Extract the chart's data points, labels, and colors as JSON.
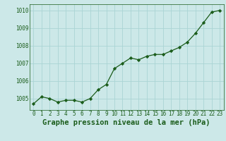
{
  "x": [
    0,
    1,
    2,
    3,
    4,
    5,
    6,
    7,
    8,
    9,
    10,
    11,
    12,
    13,
    14,
    15,
    16,
    17,
    18,
    19,
    20,
    21,
    22,
    23
  ],
  "y": [
    1004.7,
    1005.1,
    1005.0,
    1004.8,
    1004.9,
    1004.9,
    1004.8,
    1005.0,
    1005.5,
    1005.8,
    1006.7,
    1007.0,
    1007.3,
    1007.2,
    1007.4,
    1007.5,
    1007.5,
    1007.7,
    1007.9,
    1008.2,
    1008.7,
    1009.3,
    1009.9,
    1010.0
  ],
  "ylim": [
    1004.35,
    1010.35
  ],
  "yticks": [
    1005,
    1006,
    1007,
    1008,
    1009,
    1010
  ],
  "xticks": [
    0,
    1,
    2,
    3,
    4,
    5,
    6,
    7,
    8,
    9,
    10,
    11,
    12,
    13,
    14,
    15,
    16,
    17,
    18,
    19,
    20,
    21,
    22,
    23
  ],
  "line_color": "#1a5c1a",
  "marker_color": "#1a5c1a",
  "bg_color": "#cce8e8",
  "grid_color": "#aad4d4",
  "text_color": "#1a5c1a",
  "xlabel": "Graphe pression niveau de la mer (hPa)",
  "xlabel_fontsize": 7.5,
  "tick_fontsize": 5.5
}
